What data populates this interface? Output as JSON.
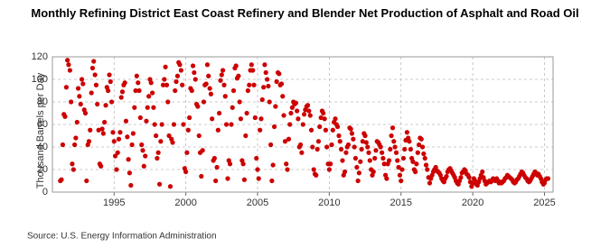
{
  "chart_data": {
    "type": "scatter",
    "title": "Monthly Refining District East Coast Refinery and Blender Net Production of Asphalt and Road Oil",
    "y_label": "Thousand Barrels per Day",
    "source": "Source: U.S. Energy Information Administration",
    "xlim": [
      1990.7,
      2025.6
    ],
    "xticks": [
      1995,
      2000,
      2005,
      2010,
      2015,
      2020,
      2025
    ],
    "ylim": [
      0,
      120
    ],
    "yticks": [
      0,
      20,
      40,
      60,
      80,
      100,
      120
    ],
    "grid": true,
    "series": [
      {
        "name": "East Coast",
        "color": "#cc0000",
        "x": [
          1991.25,
          1991.33,
          1991.42,
          1991.5,
          1991.58,
          1991.67,
          1991.75,
          1991.83,
          1991.92,
          1992,
          1992.08,
          1992.17,
          1992.25,
          1992.33,
          1992.42,
          1992.5,
          1992.58,
          1992.67,
          1992.75,
          1992.83,
          1992.92,
          1993,
          1993.08,
          1993.17,
          1993.25,
          1993.33,
          1993.42,
          1993.5,
          1993.58,
          1993.67,
          1993.75,
          1993.83,
          1993.92,
          1994,
          1994.08,
          1994.17,
          1994.25,
          1994.33,
          1994.42,
          1994.5,
          1994.58,
          1994.67,
          1994.75,
          1994.83,
          1994.92,
          1995,
          1995.08,
          1995.17,
          1995.25,
          1995.33,
          1995.42,
          1995.5,
          1995.58,
          1995.67,
          1995.75,
          1995.83,
          1995.92,
          1996,
          1996.08,
          1996.17,
          1996.25,
          1996.33,
          1996.42,
          1996.5,
          1996.58,
          1996.67,
          1996.75,
          1996.83,
          1996.92,
          1997,
          1997.08,
          1997.17,
          1997.25,
          1997.33,
          1997.42,
          1997.5,
          1997.58,
          1997.67,
          1997.75,
          1997.83,
          1997.92,
          1998,
          1998.08,
          1998.17,
          1998.25,
          1998.33,
          1998.42,
          1998.5,
          1998.58,
          1998.67,
          1998.75,
          1998.83,
          1998.92,
          1999,
          1999.08,
          1999.17,
          1999.25,
          1999.33,
          1999.42,
          1999.5,
          1999.58,
          1999.67,
          1999.75,
          1999.83,
          1999.92,
          2000,
          2000.08,
          2000.17,
          2000.25,
          2000.33,
          2000.42,
          2000.5,
          2000.58,
          2000.67,
          2000.75,
          2000.83,
          2000.92,
          2001,
          2001.08,
          2001.17,
          2001.25,
          2001.33,
          2001.42,
          2001.5,
          2001.58,
          2001.67,
          2001.75,
          2001.83,
          2001.92,
          2002,
          2002.08,
          2002.17,
          2002.25,
          2002.33,
          2002.42,
          2002.5,
          2002.58,
          2002.67,
          2002.75,
          2002.83,
          2002.92,
          2003,
          2003.08,
          2003.17,
          2003.25,
          2003.33,
          2003.42,
          2003.5,
          2003.58,
          2003.67,
          2003.75,
          2003.83,
          2003.92,
          2004,
          2004.08,
          2004.17,
          2004.25,
          2004.33,
          2004.42,
          2004.5,
          2004.58,
          2004.67,
          2004.75,
          2004.83,
          2004.92,
          2005,
          2005.08,
          2005.17,
          2005.25,
          2005.33,
          2005.42,
          2005.5,
          2005.58,
          2005.67,
          2005.75,
          2005.83,
          2005.92,
          2006,
          2006.08,
          2006.17,
          2006.25,
          2006.33,
          2006.42,
          2006.5,
          2006.58,
          2006.67,
          2006.75,
          2006.83,
          2006.92,
          2007,
          2007.08,
          2007.17,
          2007.25,
          2007.33,
          2007.42,
          2007.5,
          2007.58,
          2007.67,
          2007.75,
          2007.83,
          2007.92,
          2008,
          2008.08,
          2008.17,
          2008.25,
          2008.33,
          2008.42,
          2008.5,
          2008.58,
          2008.67,
          2008.75,
          2008.83,
          2008.92,
          2009,
          2009.08,
          2009.17,
          2009.25,
          2009.33,
          2009.42,
          2009.5,
          2009.58,
          2009.67,
          2009.75,
          2009.83,
          2009.92,
          2010,
          2010.08,
          2010.17,
          2010.25,
          2010.33,
          2010.42,
          2010.5,
          2010.58,
          2010.67,
          2010.75,
          2010.83,
          2010.92,
          2011,
          2011.08,
          2011.17,
          2011.25,
          2011.33,
          2011.42,
          2011.5,
          2011.58,
          2011.67,
          2011.75,
          2011.83,
          2011.92,
          2012,
          2012.08,
          2012.17,
          2012.25,
          2012.33,
          2012.42,
          2012.5,
          2012.58,
          2012.67,
          2012.75,
          2012.83,
          2012.92,
          2013,
          2013.08,
          2013.17,
          2013.25,
          2013.33,
          2013.42,
          2013.5,
          2013.58,
          2013.67,
          2013.75,
          2013.83,
          2013.92,
          2014,
          2014.08,
          2014.17,
          2014.25,
          2014.33,
          2014.42,
          2014.5,
          2014.58,
          2014.67,
          2014.75,
          2014.83,
          2014.92,
          2015,
          2015.08,
          2015.17,
          2015.25,
          2015.33,
          2015.42,
          2015.5,
          2015.58,
          2015.67,
          2015.75,
          2015.83,
          2015.92,
          2016,
          2016.08,
          2016.17,
          2016.25,
          2016.33,
          2016.42,
          2016.5,
          2016.58,
          2016.67,
          2016.75,
          2016.83,
          2016.92,
          2017,
          2017.08,
          2017.17,
          2017.25,
          2017.33,
          2017.42,
          2017.5,
          2017.58,
          2017.67,
          2017.75,
          2017.83,
          2017.92,
          2018,
          2018.08,
          2018.17,
          2018.25,
          2018.33,
          2018.42,
          2018.5,
          2018.58,
          2018.67,
          2018.75,
          2018.83,
          2018.92,
          2019,
          2019.08,
          2019.17,
          2019.25,
          2019.33,
          2019.42,
          2019.5,
          2019.58,
          2019.67,
          2019.75,
          2019.83,
          2019.92,
          2020,
          2020.08,
          2020.17,
          2020.25,
          2020.33,
          2020.42,
          2020.5,
          2020.58,
          2020.67,
          2020.75,
          2020.83,
          2020.92,
          2021,
          2021.08,
          2021.17,
          2021.25,
          2021.33,
          2021.42,
          2021.5,
          2021.58,
          2021.67,
          2021.75,
          2021.83,
          2021.92,
          2022,
          2022.08,
          2022.17,
          2022.25,
          2022.33,
          2022.42,
          2022.5,
          2022.58,
          2022.67,
          2022.75,
          2022.83,
          2022.92,
          2023,
          2023.08,
          2023.17,
          2023.25,
          2023.33,
          2023.42,
          2023.5,
          2023.58,
          2023.67,
          2023.75,
          2023.83,
          2023.92,
          2024,
          2024.08,
          2024.17,
          2024.25,
          2024.33,
          2024.42,
          2024.5,
          2024.58,
          2024.67,
          2024.75,
          2024.83,
          2024.92,
          2025,
          2025.08,
          2025.17,
          2025.25
        ],
        "values": [
          10,
          11,
          42,
          69,
          67,
          93,
          117,
          113,
          108,
          80,
          25,
          20,
          42,
          48,
          62,
          92,
          85,
          78,
          100,
          96,
          73,
          70,
          10,
          42,
          45,
          55,
          88,
          110,
          116,
          104,
          95,
          78,
          55,
          25,
          23,
          56,
          52,
          62,
          77,
          93,
          90,
          104,
          98,
          80,
          53,
          45,
          32,
          20,
          35,
          47,
          53,
          84,
          89,
          95,
          97,
          63,
          49,
          29,
          17,
          6,
          42,
          52,
          75,
          90,
          103,
          97,
          90,
          66,
          42,
          37,
          23,
          32,
          63,
          75,
          85,
          100,
          97,
          88,
          75,
          60,
          50,
          30,
          35,
          7,
          45,
          60,
          95,
          100,
          111,
          95,
          80,
          50,
          5,
          47,
          44,
          60,
          90,
          98,
          103,
          115,
          113,
          108,
          95,
          60,
          21,
          18,
          35,
          55,
          66,
          92,
          90,
          112,
          106,
          100,
          78,
          76,
          50,
          35,
          14,
          37,
          80,
          95,
          96,
          113,
          103,
          92,
          87,
          65,
          28,
          30,
          10,
          22,
          55,
          70,
          99,
          104,
          108,
          95,
          85,
          60,
          12,
          28,
          25,
          60,
          75,
          90,
          110,
          112,
          101,
          103,
          80,
          65,
          28,
          25,
          11,
          50,
          70,
          90,
          95,
          108,
          113,
          108,
          95,
          66,
          30,
          20,
          12,
          55,
          65,
          82,
          93,
          113,
          106,
          100,
          94,
          80,
          42,
          10,
          24,
          58,
          76,
          98,
          106,
          105,
          95,
          96,
          85,
          68,
          45,
          25,
          20,
          47,
          60,
          70,
          75,
          80,
          78,
          79,
          72,
          65,
          40,
          42,
          35,
          60,
          69,
          73,
          76,
          77,
          72,
          68,
          55,
          40,
          20,
          16,
          15,
          38,
          45,
          58,
          66,
          72,
          70,
          65,
          55,
          40,
          25,
          20,
          25,
          42,
          55,
          62,
          65,
          60,
          58,
          50,
          45,
          38,
          28,
          15,
          18,
          35,
          40,
          42,
          57,
          56,
          52,
          47,
          40,
          30,
          22,
          10,
          17,
          27,
          38,
          45,
          52,
          50,
          44,
          40,
          35,
          28,
          20,
          15,
          18,
          30,
          37,
          45,
          44,
          42,
          40,
          35,
          30,
          25,
          15,
          12,
          25,
          28,
          38,
          50,
          57,
          45,
          40,
          35,
          28,
          22,
          15,
          10,
          20,
          30,
          38,
          46,
          53,
          48,
          45,
          38,
          30,
          27,
          20,
          18,
          25,
          35,
          42,
          48,
          47,
          40,
          34,
          30,
          24,
          20,
          13,
          8,
          12,
          15,
          18,
          20,
          22,
          19,
          18,
          17,
          15,
          12,
          10,
          9,
          12,
          14,
          18,
          20,
          21,
          19,
          17,
          15,
          13,
          10,
          8,
          7,
          10,
          13,
          17,
          18,
          20,
          19,
          16,
          15,
          13,
          9,
          5,
          8,
          12,
          10,
          7,
          6,
          9,
          12,
          15,
          18,
          13,
          10,
          7,
          8,
          9,
          10,
          9,
          10,
          12,
          11,
          10,
          12,
          10,
          8,
          9,
          8,
          9,
          10,
          12,
          13,
          15,
          14,
          13,
          12,
          11,
          9,
          8,
          9,
          11,
          12,
          14,
          16,
          18,
          17,
          15,
          13,
          12,
          10,
          9,
          10,
          12,
          14,
          16,
          18,
          17,
          15,
          16,
          14,
          12,
          9,
          7,
          8,
          11,
          12,
          12
        ]
      }
    ]
  }
}
